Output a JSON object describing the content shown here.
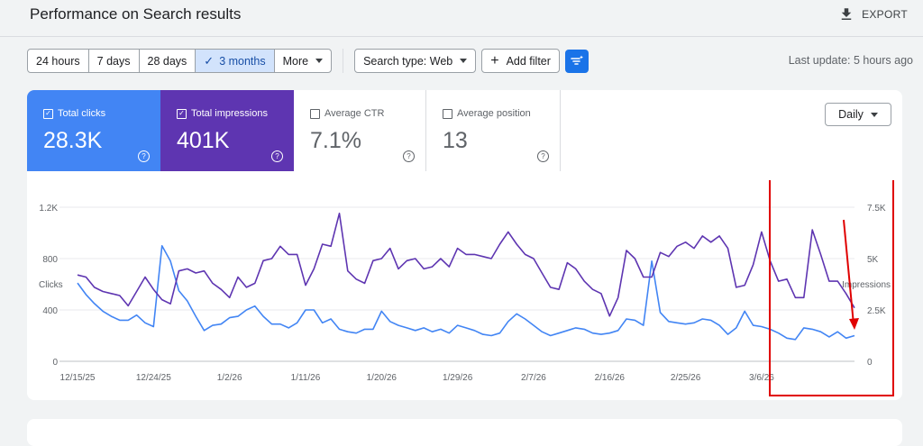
{
  "header": {
    "title": "Performance on Search results",
    "export_label": "EXPORT"
  },
  "filters": {
    "ranges": [
      "24 hours",
      "7 days",
      "28 days",
      "3 months",
      "More"
    ],
    "active_range": "3 months",
    "search_type": "Search type: Web",
    "add_filter": "Add filter",
    "last_update": "Last update: 5 hours ago"
  },
  "metrics": {
    "clicks": {
      "label": "Total clicks",
      "value": "28.3K",
      "checked": true
    },
    "impressions": {
      "label": "Total impressions",
      "value": "401K",
      "checked": true
    },
    "ctr": {
      "label": "Average CTR",
      "value": "7.1%",
      "checked": false
    },
    "position": {
      "label": "Average position",
      "value": "13",
      "checked": false
    }
  },
  "granularity": "Daily",
  "colors": {
    "clicks": "#4285f4",
    "impressions": "#5e35b1",
    "highlight": "#e00000"
  },
  "chart_data": {
    "type": "line",
    "left_axis": {
      "label": "Clicks",
      "ticks": [
        "0",
        "400",
        "800",
        "1.2K"
      ],
      "ylim": [
        0,
        1200
      ]
    },
    "right_axis": {
      "label": "Impressions",
      "ticks": [
        "0",
        "2.5K",
        "5K",
        "7.5K"
      ],
      "ylim": [
        0,
        7500
      ]
    },
    "x_tick_labels": [
      "12/15/25",
      "12/24/25",
      "1/2/26",
      "1/11/26",
      "1/20/26",
      "1/29/26",
      "2/7/26",
      "2/16/26",
      "2/25/26",
      "3/6/26"
    ],
    "series": [
      {
        "name": "Total clicks",
        "values": [
          610,
          520,
          450,
          390,
          350,
          320,
          320,
          360,
          300,
          270,
          900,
          780,
          550,
          470,
          350,
          240,
          280,
          290,
          340,
          350,
          400,
          430,
          350,
          290,
          290,
          260,
          300,
          400,
          400,
          300,
          330,
          250,
          230,
          220,
          250,
          250,
          390,
          310,
          280,
          260,
          240,
          260,
          230,
          250,
          220,
          280,
          260,
          240,
          210,
          200,
          220,
          310,
          370,
          330,
          280,
          230,
          200,
          220,
          240,
          260,
          250,
          220,
          210,
          220,
          240,
          330,
          320,
          280,
          780,
          380,
          310,
          300,
          290,
          300,
          330,
          320,
          280,
          210,
          260,
          390,
          280,
          270,
          250,
          220,
          180,
          170,
          260,
          250,
          230,
          190,
          230,
          180,
          200
        ]
      },
      {
        "name": "Total impressions",
        "values": [
          4200,
          4100,
          3600,
          3400,
          3300,
          3200,
          2700,
          3400,
          4100,
          3500,
          3000,
          2800,
          4400,
          4500,
          4300,
          4400,
          3800,
          3500,
          3100,
          4100,
          3600,
          3800,
          4900,
          5000,
          5600,
          5200,
          5200,
          3700,
          4500,
          5700,
          5600,
          7200,
          4400,
          4000,
          3800,
          4900,
          5000,
          5500,
          4500,
          4900,
          5000,
          4500,
          4600,
          5000,
          4600,
          5500,
          5200,
          5200,
          5100,
          5000,
          5700,
          6300,
          5700,
          5200,
          5000,
          4300,
          3600,
          3500,
          4800,
          4500,
          3900,
          3500,
          3300,
          2200,
          3100,
          5400,
          5000,
          4100,
          4100,
          5300,
          5100,
          5600,
          5800,
          5500,
          6100,
          5800,
          6100,
          5500,
          3600,
          3700,
          4700,
          6300,
          4900,
          3900,
          4000,
          3100,
          3100,
          6400,
          5200,
          3900,
          3900,
          3300,
          2600
        ]
      }
    ],
    "annotation": "highlight box around the most recent weeks with an arrow pointing down"
  }
}
